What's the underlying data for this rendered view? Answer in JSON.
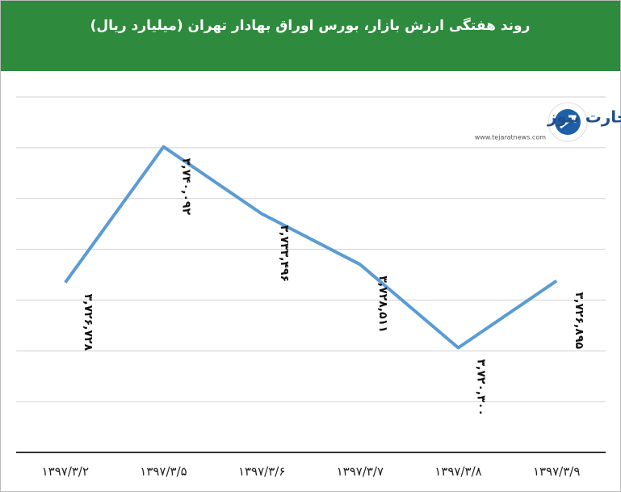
{
  "chart_data": {
    "type": "line",
    "title": "روند هفتگی ارزش بازار، بورس اوراق بهادار تهران (میلیارد ریال)",
    "brand": "تجارت نیوز",
    "website": "www.tejaratnews.com",
    "categories": [
      "۱۳۹۷/۳/۲",
      "۱۳۹۷/۳/۵",
      "۱۳۹۷/۳/۶",
      "۱۳۹۷/۳/۷",
      "۱۳۹۷/۳/۸",
      "۱۳۹۷/۳/۹"
    ],
    "series": [
      {
        "color": "#5b9bd5",
        "values": [
          3726728,
          3740092,
          3733496,
          3728511,
          3720300,
          3726895
        ],
        "value_labels": [
          "۳,۷۲۶,۷۲۸",
          "۳,۷۴۰,۰۹۲",
          "۳,۷۳۳,۴۹۶",
          "۳,۷۲۸,۵۱۱",
          "۳,۷۲۰,۳۰۰",
          "۳,۷۲۶,۸۹۵"
        ]
      }
    ],
    "ylim": [
      3710000,
      3745000
    ],
    "yticks": [
      3715000,
      3720000,
      3725000,
      3730000,
      3735000,
      3740000,
      3745000
    ],
    "grid": true,
    "header_color": "#2e8b3e"
  }
}
